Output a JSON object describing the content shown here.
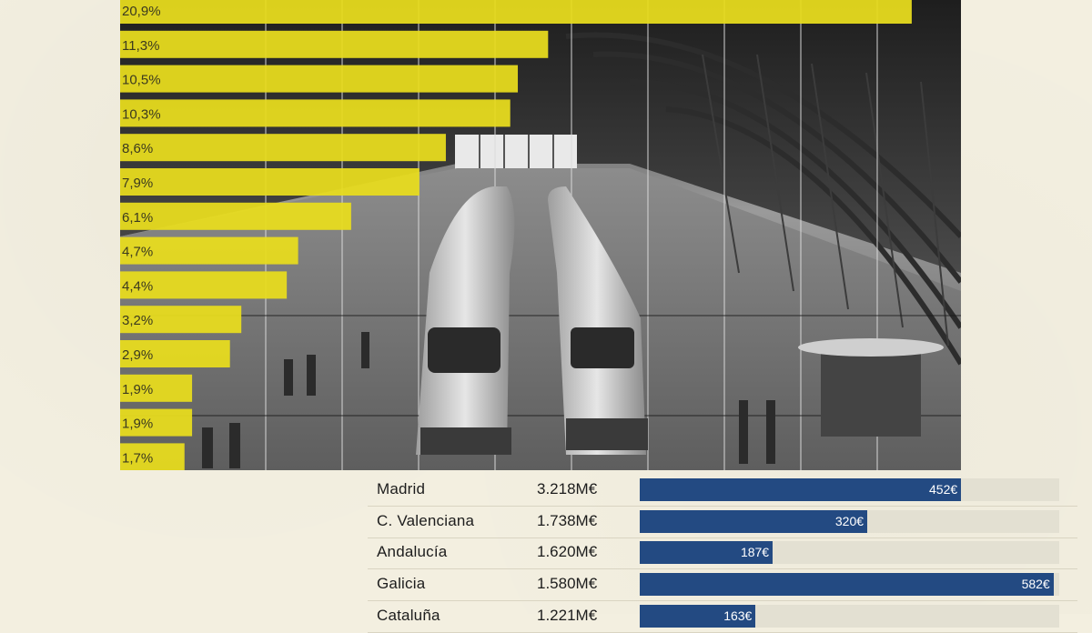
{
  "chart_data": [
    {
      "type": "bar",
      "orientation": "horizontal",
      "data_labels": [
        "20,9%",
        "11,3%",
        "10,5%",
        "10,3%",
        "8,6%",
        "7,9%",
        "6,1%",
        "4,7%",
        "4,4%",
        "3,2%",
        "2,9%",
        "1,9%",
        "1,9%",
        "1,7%"
      ],
      "values": [
        20.9,
        11.3,
        10.5,
        10.3,
        8.6,
        7.9,
        6.1,
        4.7,
        4.4,
        3.2,
        2.9,
        1.9,
        1.9,
        1.7
      ],
      "xlim": [
        0,
        22.2
      ],
      "bar_color": "#e8dc1e",
      "title": "",
      "xlabel": "",
      "ylabel": ""
    },
    {
      "type": "table",
      "columns": [
        "region",
        "amount",
        "per_capita"
      ],
      "rows": [
        {
          "region": "Madrid",
          "amount": "3.218M€",
          "per_capita_label": "452€",
          "per_capita": 452
        },
        {
          "region": "C. Valenciana",
          "amount": "1.738M€",
          "per_capita_label": "320€",
          "per_capita": 320
        },
        {
          "region": "Andalucía",
          "amount": "1.620M€",
          "per_capita_label": "187€",
          "per_capita": 187
        },
        {
          "region": "Galicia",
          "amount": "1.580M€",
          "per_capita_label": "582€",
          "per_capita": 582
        },
        {
          "region": "Cataluña",
          "amount": "1.221M€",
          "per_capita_label": "163€",
          "per_capita": 163
        }
      ],
      "per_capita_max": 590,
      "bar_color": "#234a82",
      "track_color": "#e3e0d2"
    }
  ]
}
